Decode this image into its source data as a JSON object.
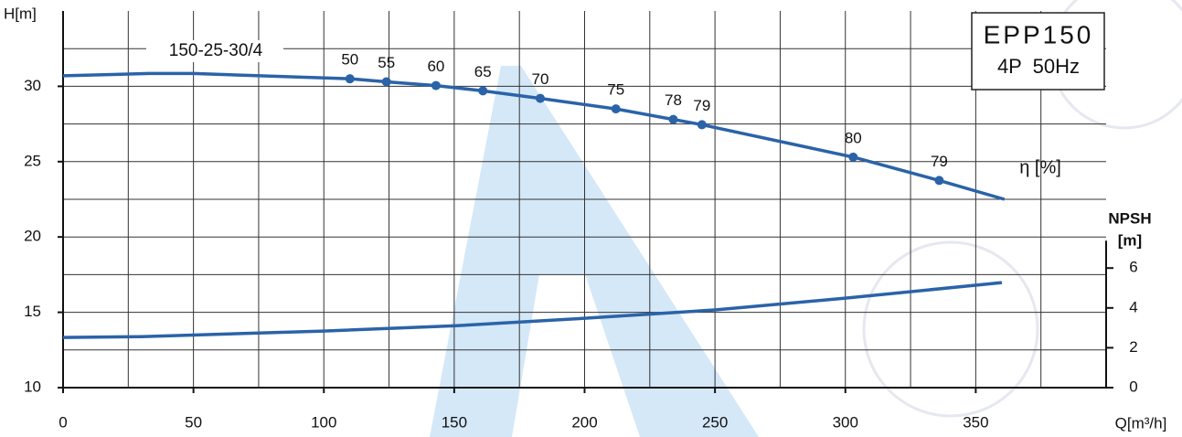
{
  "chart_data": {
    "type": "line",
    "model": "150-25-30/4",
    "box_title": "EPP150",
    "box_subtitle": "4P  50Hz",
    "xlabel": "Q[m³/h]",
    "ylabel": "H[m]",
    "y2label": "NPSH",
    "y2unit": "[m]",
    "efficiency_label": "η [%]",
    "xlim": [
      0,
      400
    ],
    "xticks": [
      0,
      50,
      100,
      150,
      200,
      250,
      300,
      350
    ],
    "x_minor_grid": [
      25,
      75,
      125,
      175,
      225,
      275,
      325,
      375
    ],
    "ylim": [
      10,
      35
    ],
    "yticks": [
      10,
      15,
      20,
      25,
      30
    ],
    "y_minor_grid": [
      12.5,
      17.5,
      22.5,
      27.5,
      32.5
    ],
    "y2lim": [
      0,
      18.9
    ],
    "y2ticks": [
      0,
      2,
      4,
      6
    ],
    "grid": true,
    "series": [
      {
        "name": "H",
        "color": "#2a63a8",
        "x": [
          0,
          33,
          50,
          110,
          124,
          143,
          161,
          183,
          212,
          234,
          245,
          303,
          336,
          361
        ],
        "values": [
          30.7,
          30.85,
          30.85,
          30.5,
          30.3,
          30.05,
          29.7,
          29.2,
          28.5,
          27.8,
          27.45,
          25.3,
          23.75,
          22.5
        ]
      },
      {
        "name": "NPSH",
        "color": "#2a63a8",
        "axis": "y2",
        "x": [
          0,
          30,
          100,
          150,
          200,
          250,
          300,
          360
        ],
        "values": [
          2.52,
          2.56,
          2.84,
          3.1,
          3.48,
          3.9,
          4.49,
          5.27
        ]
      }
    ],
    "points": {
      "color": "#2a63a8",
      "x": [
        110,
        124,
        143,
        161,
        183,
        212,
        234,
        245,
        303,
        336
      ],
      "y": [
        30.5,
        30.3,
        30.05,
        29.7,
        29.2,
        28.5,
        27.8,
        27.45,
        25.3,
        23.75
      ],
      "labels": [
        50,
        55,
        60,
        65,
        70,
        75,
        78,
        79,
        80,
        79
      ]
    }
  }
}
